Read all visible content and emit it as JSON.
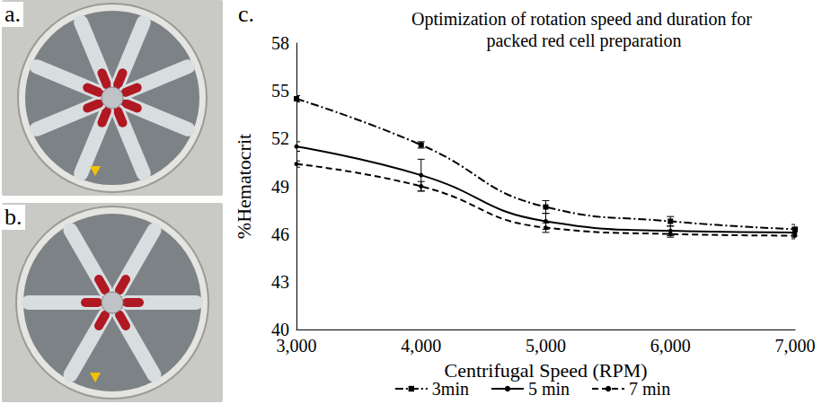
{
  "panels": [
    {
      "label": "a."
    },
    {
      "label": "b."
    },
    {
      "label": "c."
    }
  ],
  "chart_data": {
    "type": "line",
    "title": "Optimization of rotation speed and duration for packed red cell preparation",
    "x_label": "Centrifugal Speed (RPM)",
    "y_label": "%Hematocrit",
    "categories": [
      "3,000",
      "4,000",
      "5,000",
      "6,000",
      "7,000"
    ],
    "ylim": [
      40,
      58
    ],
    "yticks": [
      40,
      43,
      46,
      49,
      52,
      55,
      58
    ],
    "grid": false,
    "legend": "bottom",
    "series": [
      {
        "name": "3min",
        "color": "#000000",
        "line_style": "dashdot",
        "marker": "square",
        "values": [
          54.5,
          51.6,
          47.7,
          46.8,
          46.3
        ],
        "errors": [
          0.2,
          0.2,
          0.4,
          0.3,
          0.3
        ]
      },
      {
        "name": "5 min",
        "color": "#000000",
        "line_style": "solid",
        "marker": "circle",
        "values": [
          51.5,
          49.7,
          46.8,
          46.2,
          46.1
        ],
        "errors": [
          0.3,
          1.0,
          0.5,
          0.3,
          0.3
        ]
      },
      {
        "name": "7 min",
        "color": "#000000",
        "line_style": "dashed",
        "marker": "circle",
        "values": [
          50.4,
          49.0,
          46.4,
          46.0,
          45.9
        ],
        "errors": [
          0.2,
          0.3,
          0.3,
          0.2,
          0.2
        ]
      }
    ]
  }
}
